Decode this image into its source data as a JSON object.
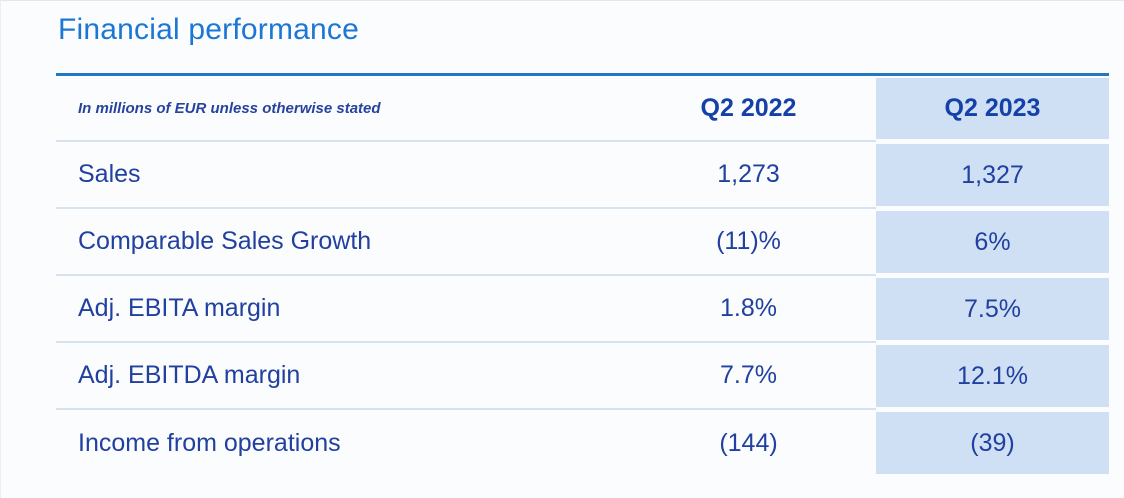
{
  "title": "Financial performance",
  "table": {
    "note": "In millions of EUR unless otherwise stated",
    "columns": {
      "prev": "Q2 2022",
      "cur": "Q2 2023"
    },
    "rows": [
      {
        "label": "Sales",
        "prev": "1,273",
        "cur": "1,327"
      },
      {
        "label": "Comparable Sales Growth",
        "prev": "(11)%",
        "cur": "6%"
      },
      {
        "label": "Adj. EBITA margin",
        "prev": "1.8%",
        "cur": "7.5%"
      },
      {
        "label": "Adj. EBITDA margin",
        "prev": "7.7%",
        "cur": "12.1%"
      },
      {
        "label": "Income from operations",
        "prev": "(144)",
        "cur": "(39)"
      }
    ]
  },
  "colors": {
    "title_blue": "#1c76d3",
    "rule_blue": "#2079c2",
    "header_navy": "#1440a8",
    "body_navy": "#21409f",
    "highlight_bg": "#cfe0f4",
    "divider": "#d6e3ef",
    "page_bg": "#fbfcfe"
  }
}
